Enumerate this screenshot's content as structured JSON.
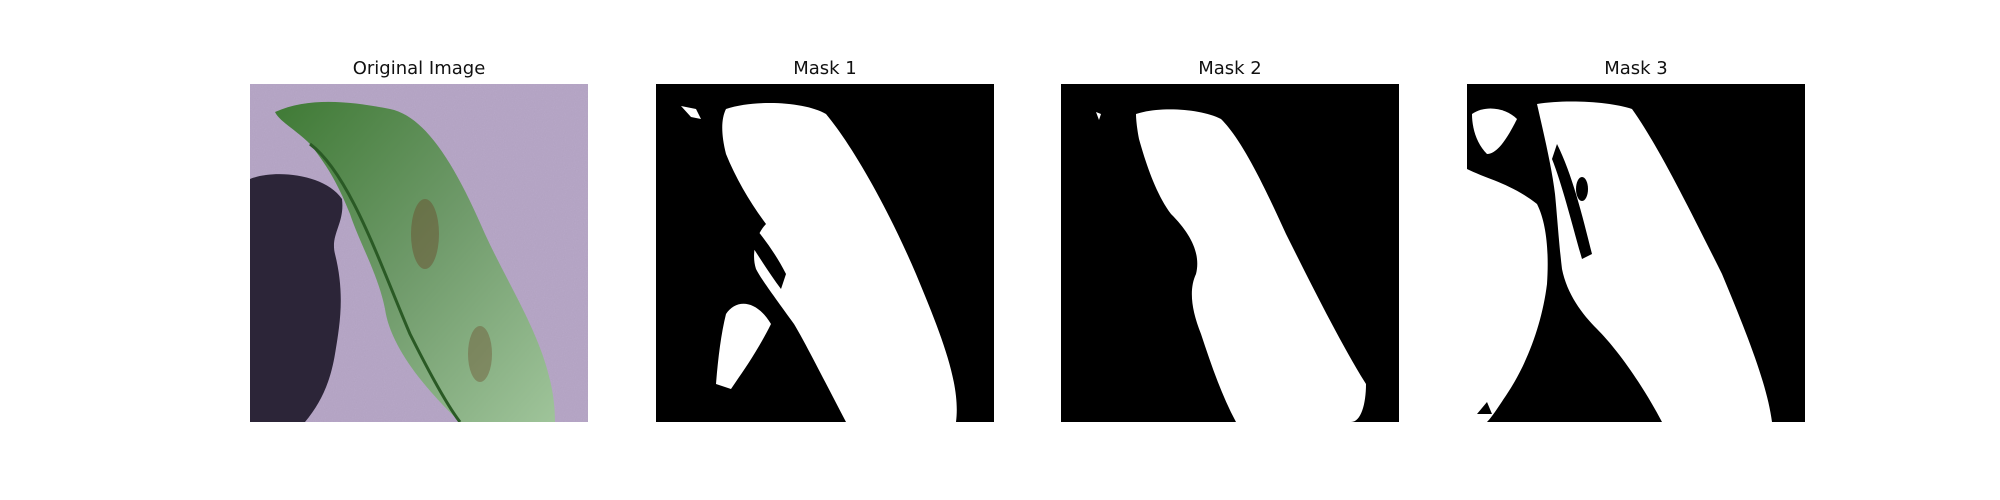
{
  "panels": [
    {
      "title": "Original Image",
      "kind": "photo"
    },
    {
      "title": "Mask 1",
      "kind": "mask"
    },
    {
      "title": "Mask 2",
      "kind": "mask"
    },
    {
      "title": "Mask 3",
      "kind": "mask"
    }
  ],
  "colors": {
    "background": "#b8a8c8",
    "shadow": "#2c2538",
    "leaf_dark": "#2f6b2a",
    "leaf_light": "#8fb88a",
    "mask_fg": "#ffffff",
    "mask_bg": "#000000"
  }
}
